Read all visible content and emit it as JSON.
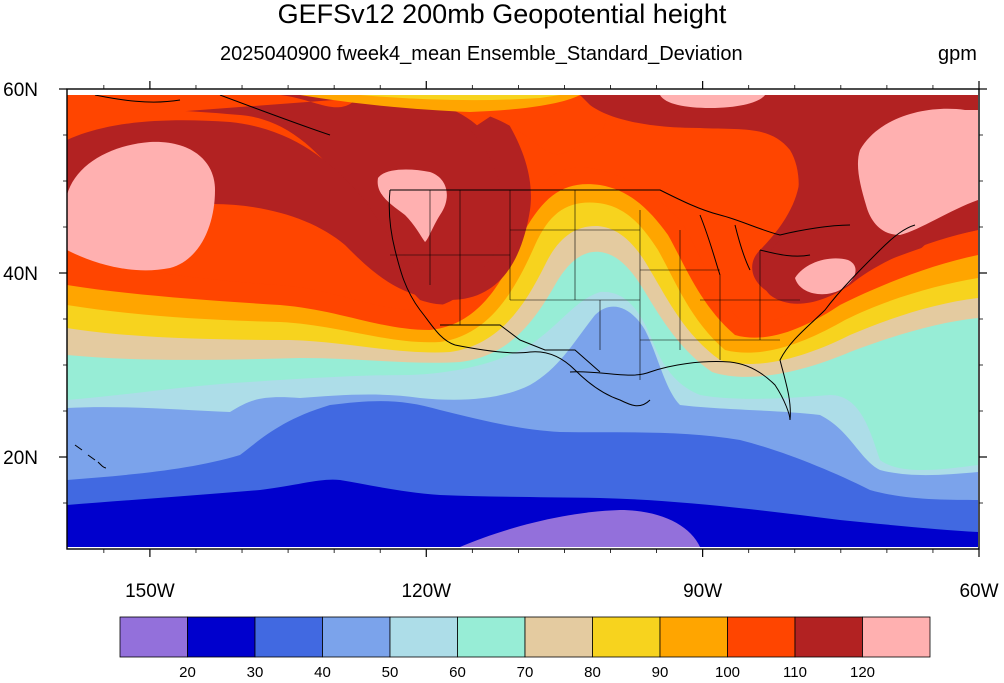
{
  "title": "GEFSv12 200mb Geopotential height",
  "subtitle": "2025040900 fweek4_mean Ensemble_Standard_Deviation",
  "units": "gpm",
  "map": {
    "projection": "cylindrical equidistant",
    "lon_range": [
      -159,
      -60
    ],
    "lat_range": [
      10,
      60
    ],
    "lon_ticks": [
      {
        "value": -150,
        "label": "150W"
      },
      {
        "value": -120,
        "label": "120W"
      },
      {
        "value": -90,
        "label": "90W"
      },
      {
        "value": -60,
        "label": "60W"
      }
    ],
    "lat_ticks": [
      {
        "value": 20,
        "label": "20N"
      },
      {
        "value": 40,
        "label": "40N"
      },
      {
        "value": 60,
        "label": "60N"
      }
    ],
    "boundaries": [
      "coastlines",
      "US state borders",
      "national borders"
    ]
  },
  "colorbar": {
    "levels": [
      "20",
      "30",
      "40",
      "50",
      "60",
      "70",
      "80",
      "90",
      "100",
      "110",
      "120"
    ],
    "colors": [
      "#9370DB",
      "#0000CD",
      "#4169E1",
      "#7BA3EB",
      "#ADDDE8",
      "#97EDD6",
      "#E4CBA0",
      "#F7D31E",
      "#FFA500",
      "#FF4500",
      "#B22222",
      "#FFB0B0"
    ]
  }
}
